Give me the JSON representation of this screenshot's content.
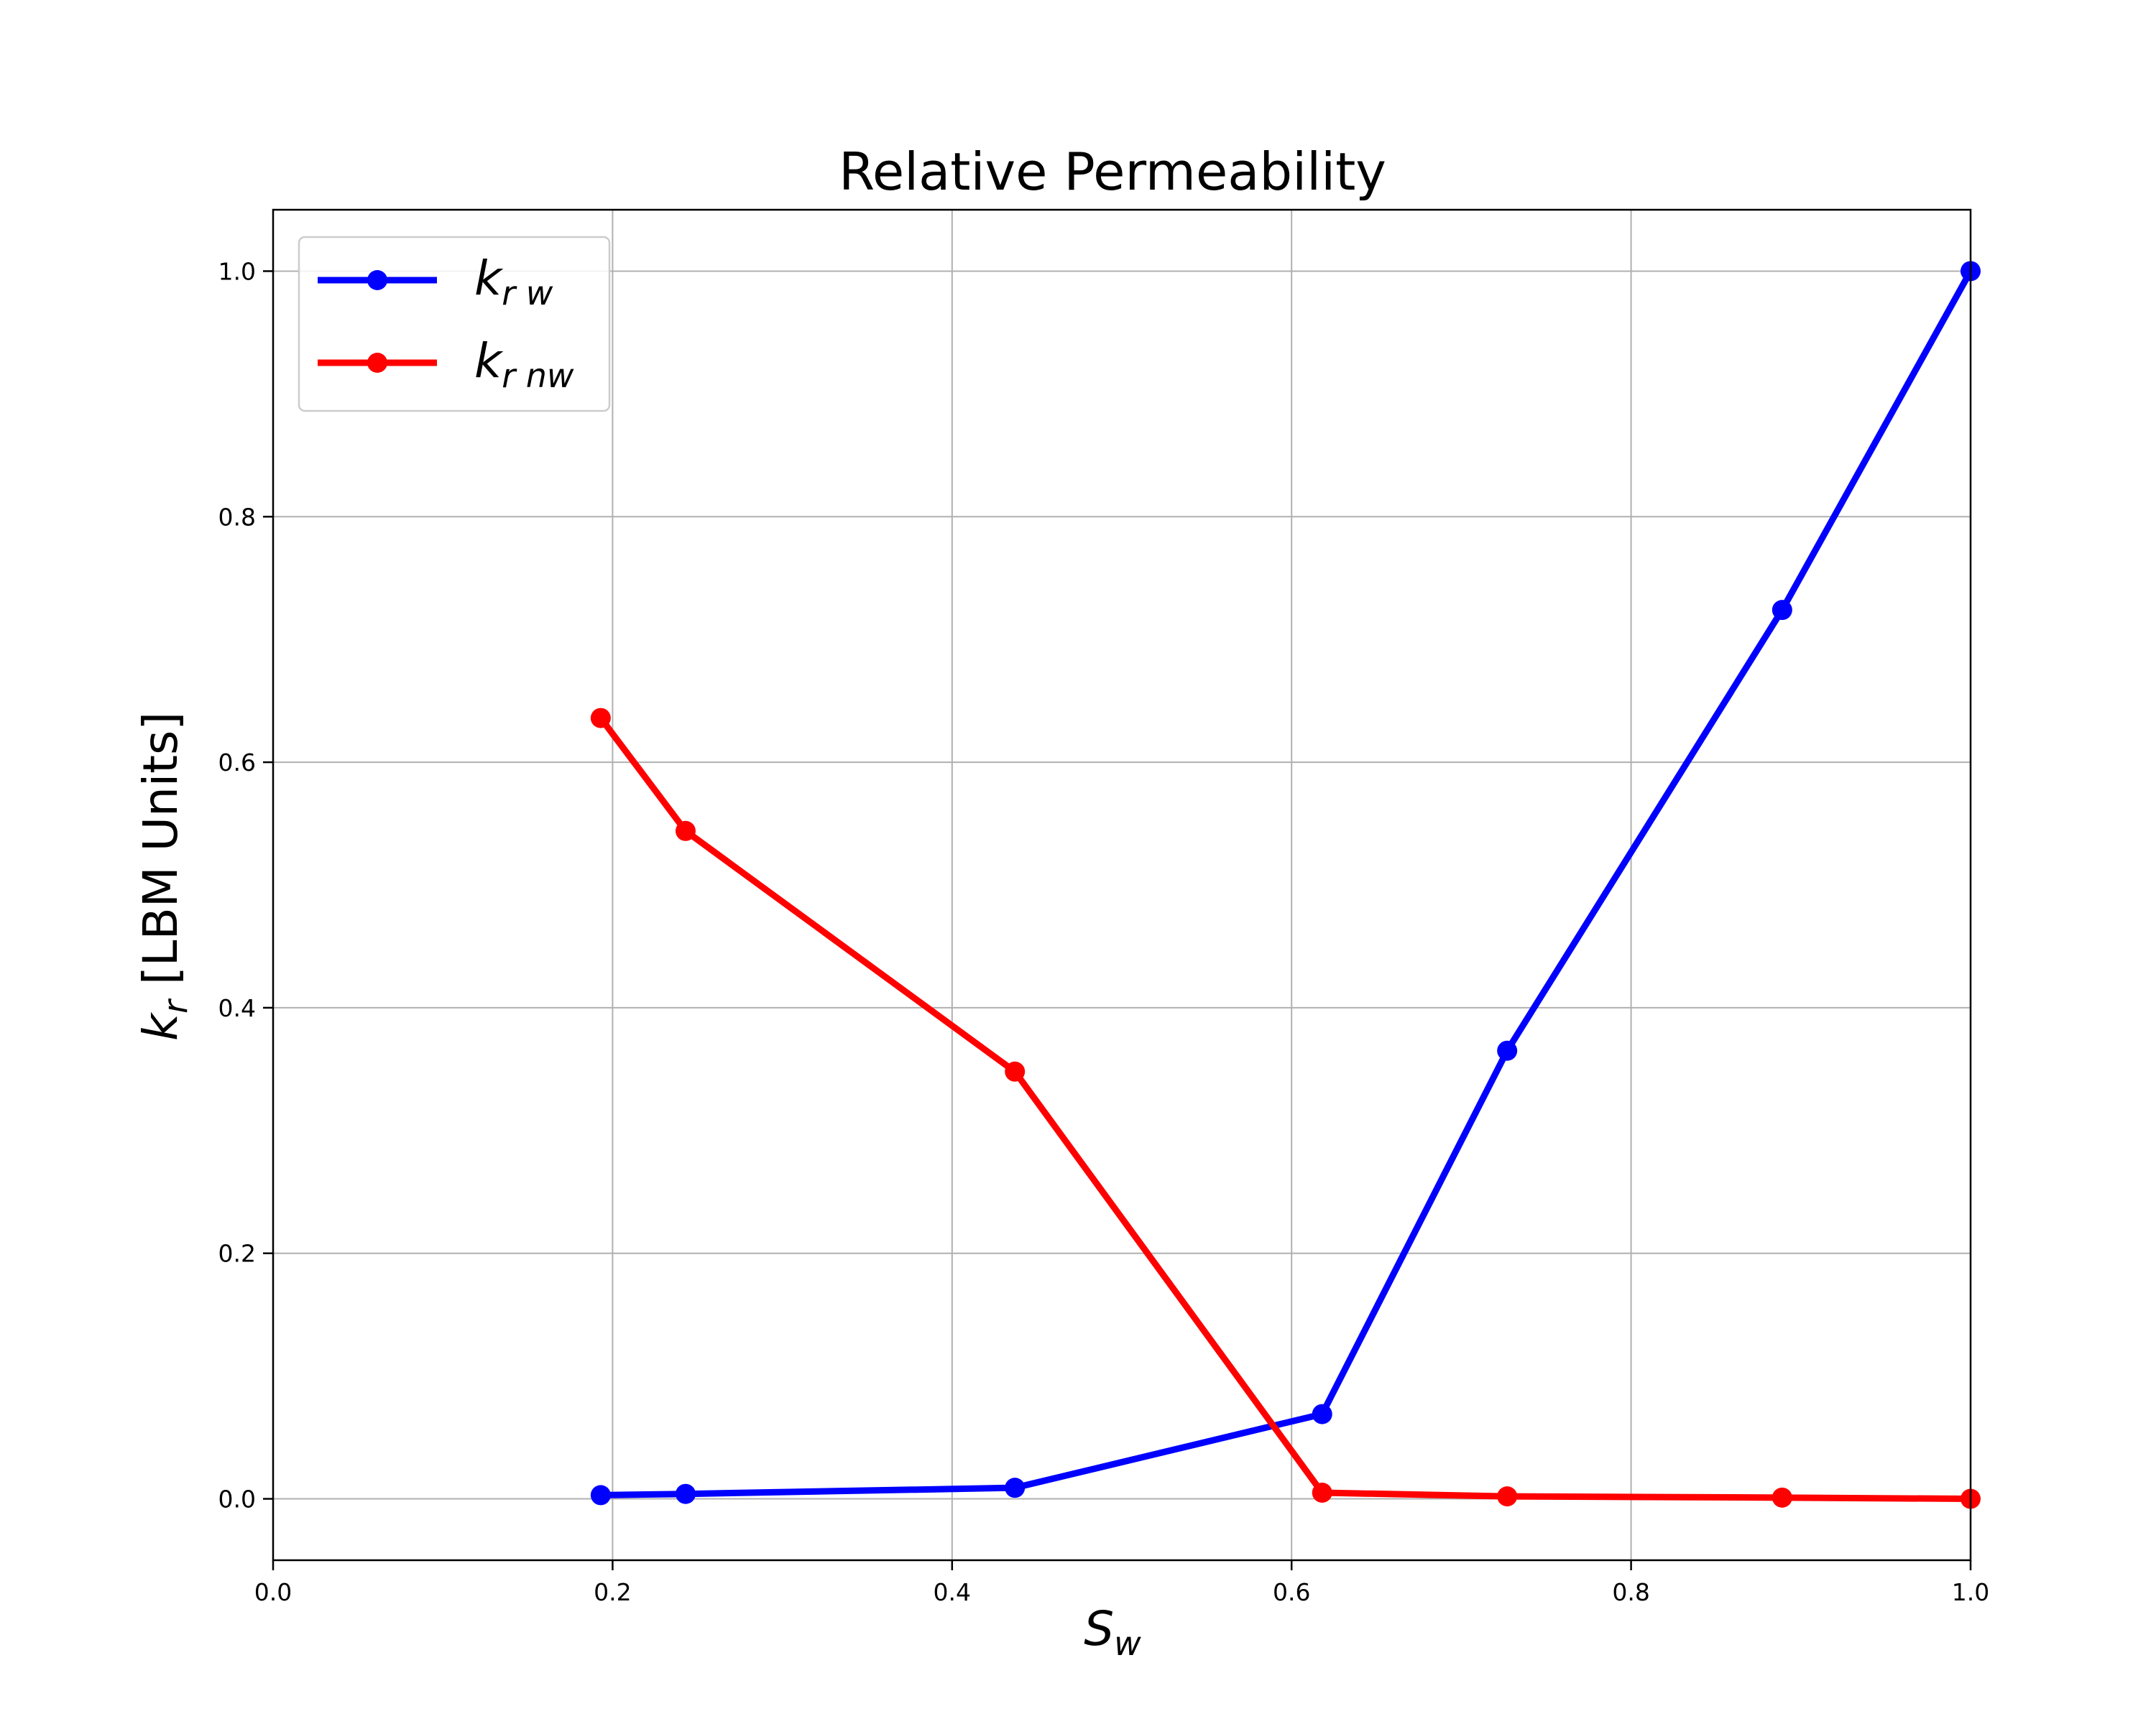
{
  "chart_data": {
    "type": "line",
    "title": "Relative Permeability",
    "xlabel": {
      "main": "S",
      "sub": "w"
    },
    "ylabel": {
      "main": "k",
      "sub": "r",
      "rest": " [LBM Units]"
    },
    "xlim": [
      0.0,
      1.0
    ],
    "ylim": [
      -0.05,
      1.05
    ],
    "xticks": [
      0.0,
      0.2,
      0.4,
      0.6,
      0.8,
      1.0
    ],
    "yticks": [
      0.0,
      0.2,
      0.4,
      0.6,
      0.8,
      1.0
    ],
    "xtick_labels": [
      "0.0",
      "0.2",
      "0.4",
      "0.6",
      "0.8",
      "1.0"
    ],
    "ytick_labels": [
      "0.0",
      "0.2",
      "0.4",
      "0.6",
      "0.8",
      "1.0"
    ],
    "grid": true,
    "legend_position": "top-left",
    "series": [
      {
        "name": {
          "main": "k",
          "sub": "r w"
        },
        "color": "#0000ff",
        "x": [
          0.193,
          0.243,
          0.437,
          0.618,
          0.727,
          0.889,
          1.0
        ],
        "y": [
          0.003,
          0.004,
          0.009,
          0.069,
          0.365,
          0.724,
          1.0
        ]
      },
      {
        "name": {
          "main": "k",
          "sub": "r nw"
        },
        "color": "#ff0000",
        "x": [
          0.193,
          0.243,
          0.437,
          0.618,
          0.727,
          0.889,
          1.0
        ],
        "y": [
          0.636,
          0.544,
          0.348,
          0.005,
          0.002,
          0.001,
          0.0
        ]
      }
    ]
  }
}
